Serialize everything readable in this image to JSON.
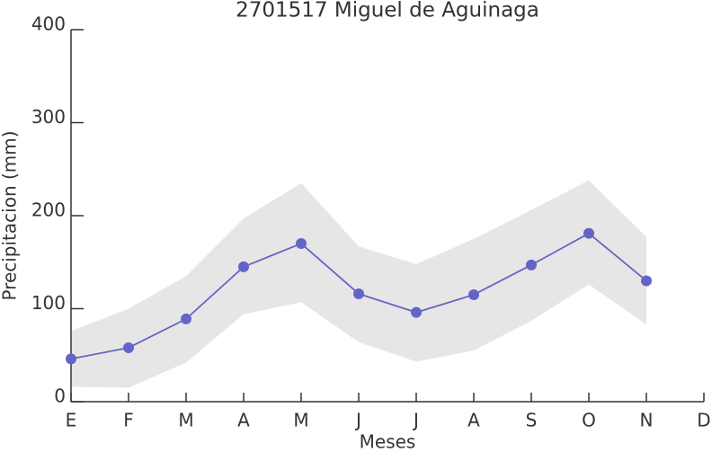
{
  "chart_data": {
    "type": "line",
    "title": "2701517 Miguel de Aguinaga",
    "xlabel": "Meses",
    "ylabel": "Precipitacion (mm)",
    "categories": [
      "E",
      "F",
      "M",
      "A",
      "M",
      "J",
      "J",
      "A",
      "S",
      "O",
      "N",
      "D"
    ],
    "values": [
      46,
      58,
      89,
      145,
      170,
      116,
      96,
      115,
      147,
      181,
      130,
      null
    ],
    "color": "#6464c8",
    "band": {
      "lower": [
        16,
        15,
        42,
        94,
        107,
        64,
        43,
        55,
        87,
        126,
        83,
        null
      ],
      "upper": [
        76,
        100,
        135,
        197,
        235,
        167,
        148,
        175,
        206,
        238,
        177,
        null
      ],
      "color": "#e6e6e6"
    },
    "ylim": [
      0,
      400
    ],
    "yticks": [
      0,
      100,
      200,
      300,
      400
    ],
    "grid": false
  }
}
